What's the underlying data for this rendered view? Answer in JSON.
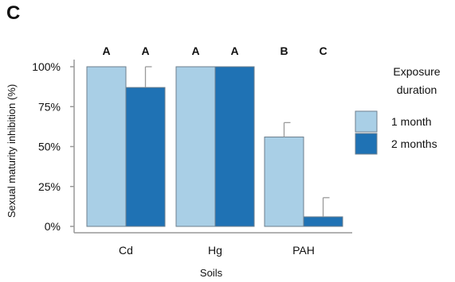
{
  "panel_label": "C",
  "chart_data": {
    "type": "bar",
    "categories": [
      "Cd",
      "Hg",
      "PAH"
    ],
    "series": [
      {
        "name": "1 month",
        "color": "#a9cfe6",
        "values": [
          100,
          100,
          56
        ],
        "error": [
          0,
          0,
          9
        ],
        "significance": [
          "A",
          "A",
          "B"
        ]
      },
      {
        "name": "2 months",
        "color": "#1f72b4",
        "values": [
          87,
          100,
          6
        ],
        "error": [
          13,
          0,
          12
        ],
        "significance": [
          "A",
          "A",
          "C"
        ]
      }
    ],
    "xlabel": "Soils",
    "ylabel": "Sexual maturity inhibition (%)",
    "ylim": [
      0,
      100
    ],
    "yticks": [
      0,
      25,
      50,
      75,
      100
    ],
    "ytick_labels": [
      "0%",
      "25%",
      "50%",
      "75%",
      "100%"
    ],
    "legend": {
      "title_line1": "Exposure",
      "title_line2": "duration",
      "placement": "right"
    },
    "grid": false
  }
}
